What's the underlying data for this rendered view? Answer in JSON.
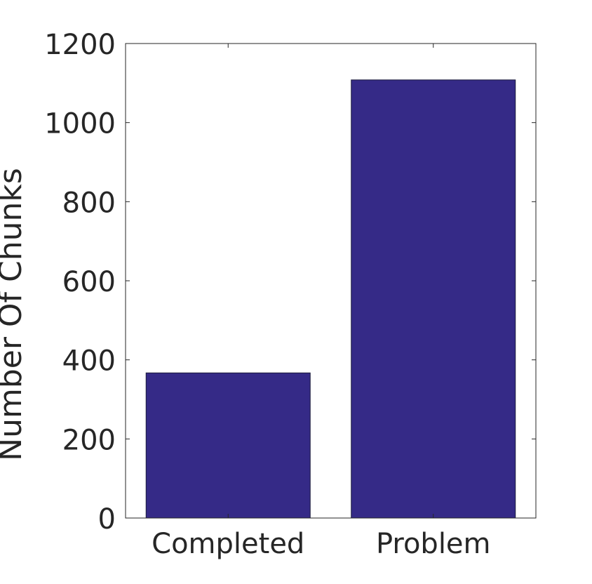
{
  "chart_data": {
    "type": "bar",
    "categories": [
      "Completed",
      "Problem"
    ],
    "values": [
      367,
      1108
    ],
    "xlabel": "",
    "ylabel": "Number Of Chunks",
    "ylim": [
      0,
      1200
    ],
    "yticks": [
      "0",
      "200",
      "400",
      "600",
      "800",
      "1000",
      "1200"
    ],
    "grid": false,
    "bar_color": "#352a87",
    "axis_color": "#262626"
  }
}
